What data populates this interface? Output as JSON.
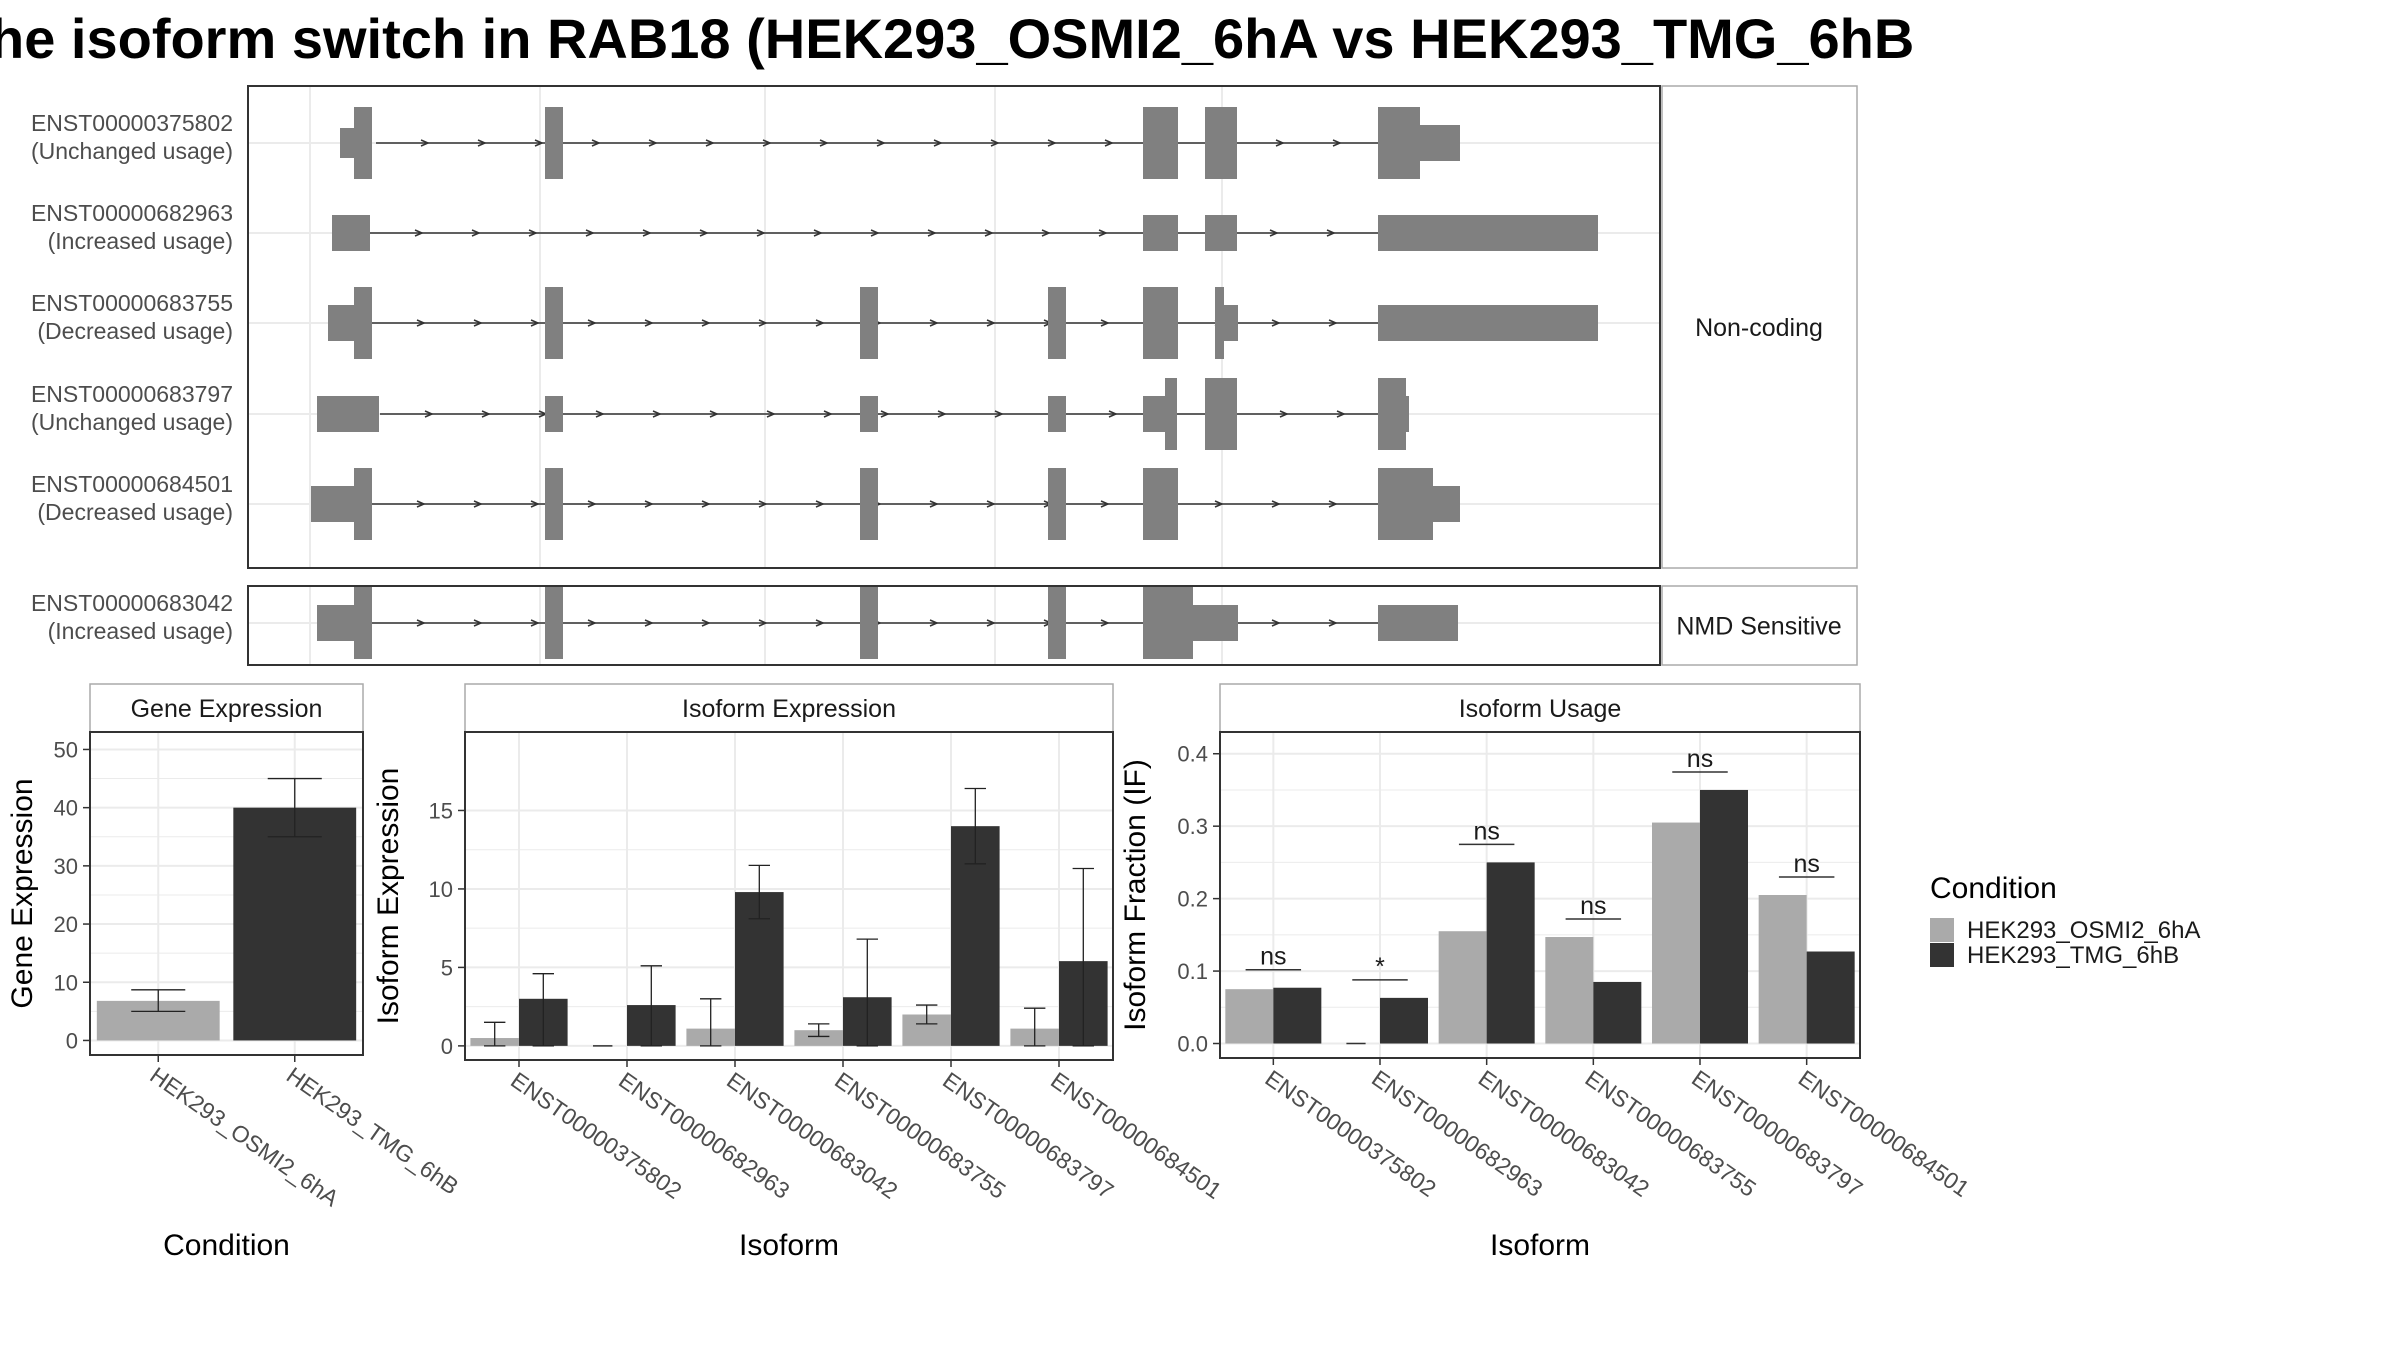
{
  "title": "he isoform switch in RAB18 (HEK293_OSMI2_6hA vs HEK293_TMG_6hB",
  "colors": {
    "exon": "#808080",
    "condition_a": "#aaaaaa",
    "condition_b": "#333333",
    "panel_border": "#333333",
    "strip_border": "#aaaaaa",
    "grid": "#ebebeb",
    "text": "#4d4d4d"
  },
  "transcripts": {
    "groups": [
      {
        "label": "Non-coding",
        "isoforms": [
          {
            "id": "ENST00000375802",
            "status": "(Unchanged usage)"
          },
          {
            "id": "ENST00000682963",
            "status": "(Increased usage)"
          },
          {
            "id": "ENST00000683755",
            "status": "(Decreased usage)"
          },
          {
            "id": "ENST00000683797",
            "status": "(Unchanged usage)"
          },
          {
            "id": "ENST00000684501",
            "status": "(Decreased usage)"
          }
        ]
      },
      {
        "label": "NMD Sensitive",
        "isoforms": [
          {
            "id": "ENST00000683042",
            "status": "(Increased usage)"
          }
        ]
      }
    ]
  },
  "legend": {
    "title": "Condition",
    "items": [
      "HEK293_OSMI2_6hA",
      "HEK293_TMG_6hB"
    ]
  },
  "chart_data": [
    {
      "type": "bar",
      "title": "Gene Expression",
      "xlabel": "Condition",
      "ylabel": "Gene Expression",
      "categories": [
        "HEK293_OSMI2_6hA",
        "HEK293_TMG_6hB"
      ],
      "values": [
        6.8,
        40.0
      ],
      "errors": [
        [
          5.0,
          8.7
        ],
        [
          35.0,
          45.0
        ]
      ],
      "ylim": [
        -2.5,
        53
      ],
      "yticks": [
        0,
        10,
        20,
        30,
        40,
        50
      ],
      "grid": true
    },
    {
      "type": "bar",
      "title": "Isoform Expression",
      "xlabel": "Isoform",
      "ylabel": "Isoform Expression",
      "categories": [
        "ENST00000375802",
        "ENST00000682963",
        "ENST00000683042",
        "ENST00000683755",
        "ENST00000683797",
        "ENST00000684501"
      ],
      "series": [
        {
          "name": "HEK293_OSMI2_6hA",
          "values": [
            0.5,
            0.0,
            1.1,
            1.0,
            2.0,
            1.1
          ],
          "errors": [
            [
              0.0,
              1.5
            ],
            [
              0.0,
              0.0
            ],
            [
              0.0,
              3.0
            ],
            [
              0.6,
              1.4
            ],
            [
              1.4,
              2.6
            ],
            [
              0.0,
              2.4
            ]
          ]
        },
        {
          "name": "HEK293_TMG_6hB",
          "values": [
            3.0,
            2.6,
            9.8,
            3.1,
            14.0,
            5.4
          ],
          "errors": [
            [
              0.0,
              4.6
            ],
            [
              0.0,
              5.1
            ],
            [
              8.1,
              11.5
            ],
            [
              0.0,
              6.8
            ],
            [
              11.6,
              16.4
            ],
            [
              0.0,
              11.3
            ]
          ]
        }
      ],
      "ylim": [
        -0.9,
        20
      ],
      "yticks": [
        0,
        5,
        10,
        15
      ],
      "grid": true
    },
    {
      "type": "bar",
      "title": "Isoform Usage",
      "xlabel": "Isoform",
      "ylabel": "Isoform Fraction (IF)",
      "categories": [
        "ENST00000375802",
        "ENST00000682963",
        "ENST00000683042",
        "ENST00000683755",
        "ENST00000683797",
        "ENST00000684501"
      ],
      "series": [
        {
          "name": "HEK293_OSMI2_6hA",
          "values": [
            0.075,
            0.0,
            0.155,
            0.147,
            0.305,
            0.205
          ]
        },
        {
          "name": "HEK293_TMG_6hB",
          "values": [
            0.077,
            0.063,
            0.25,
            0.085,
            0.35,
            0.127
          ]
        }
      ],
      "significance": [
        "ns",
        "*",
        "ns",
        "ns",
        "ns",
        "ns"
      ],
      "ylim": [
        -0.02,
        0.43
      ],
      "yticks": [
        "0.0",
        "0.1",
        "0.2",
        "0.3",
        "0.4"
      ],
      "grid": true
    }
  ]
}
